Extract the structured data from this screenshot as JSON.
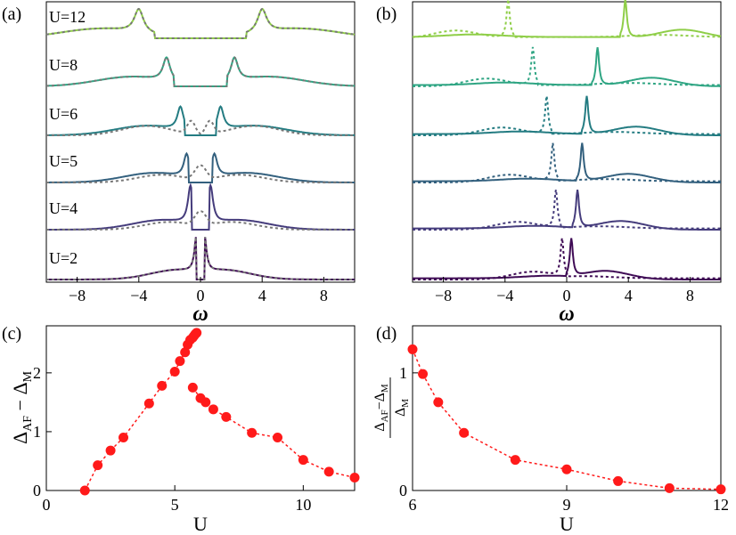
{
  "chart_data": [
    {
      "panel": "(a)",
      "type": "line",
      "xlabel": "ω",
      "x_ticks": [
        "−8",
        "−4",
        "0",
        "4",
        "8"
      ],
      "xlim": [
        -10,
        10
      ],
      "curves": [
        {
          "label": "U=2",
          "U": 2,
          "color": "#3f0b55",
          "gap": 0.3,
          "peak": 0.25,
          "hub": 0.0,
          "dash_center": 0
        },
        {
          "label": "U=4",
          "U": 4,
          "color": "#453c7c",
          "gap": 0.7,
          "peak": 0.65,
          "hub": 2.0,
          "dash_center": 1
        },
        {
          "label": "U=5",
          "U": 5,
          "color": "#33607e",
          "gap": 0.9,
          "peak": 0.9,
          "hub": 2.5,
          "dash_center": 1
        },
        {
          "label": "U=6",
          "U": 6,
          "color": "#247c82",
          "gap": 1.2,
          "peak": 1.3,
          "hub": 3.5,
          "dash_center": 2
        },
        {
          "label": "U=8",
          "U": 8,
          "color": "#2fa583",
          "gap": 2.0,
          "peak": 2.2,
          "hub": 4.5,
          "dash_center": 0
        },
        {
          "label": "U=12",
          "U": 12,
          "color": "#8fce48",
          "gap": 3.5,
          "peak": 4.0,
          "hub": 5.5,
          "dash_center": 0
        }
      ]
    },
    {
      "panel": "(b)",
      "type": "line",
      "xlabel": "ω",
      "x_ticks": [
        "−8",
        "−4",
        "0",
        "4",
        "8"
      ],
      "xlim": [
        -10,
        10
      ],
      "curves": [
        {
          "U": 2,
          "color": "#3f0b55",
          "solid_peak": 0.3,
          "dot_peak": -0.3
        },
        {
          "U": 4,
          "color": "#453c7c",
          "solid_peak": 0.7,
          "dot_peak": -0.7
        },
        {
          "U": 5,
          "color": "#33607e",
          "solid_peak": 1.0,
          "dot_peak": -0.9
        },
        {
          "U": 6,
          "color": "#247c82",
          "solid_peak": 1.3,
          "dot_peak": -1.3
        },
        {
          "U": 8,
          "color": "#2fa583",
          "solid_peak": 2.0,
          "dot_peak": -2.2
        },
        {
          "U": 12,
          "color": "#8fce48",
          "solid_peak": 3.8,
          "dot_peak": -3.8
        }
      ]
    },
    {
      "panel": "(c)",
      "type": "scatter",
      "xlabel": "U",
      "ylabel": "Δ_AF − Δ_M",
      "xlim": [
        0,
        12
      ],
      "ylim": [
        0,
        2.8
      ],
      "x_ticks": [
        "0",
        "5",
        "10"
      ],
      "y_ticks": [
        "0",
        "1",
        "2"
      ],
      "x": [
        1.5,
        2.0,
        2.5,
        3.0,
        4.0,
        4.5,
        5.0,
        5.2,
        5.4,
        5.5,
        5.6,
        5.7,
        5.75,
        5.8,
        5.85,
        5.7,
        6.0,
        6.2,
        6.5,
        7.0,
        8.0,
        9.0,
        10.0,
        11.0,
        12.0
      ],
      "values": [
        0.0,
        0.43,
        0.68,
        0.9,
        1.48,
        1.78,
        2.02,
        2.2,
        2.35,
        2.48,
        2.56,
        2.6,
        2.63,
        2.66,
        2.68,
        1.75,
        1.57,
        1.5,
        1.38,
        1.25,
        0.98,
        0.9,
        0.52,
        0.32,
        0.22
      ],
      "color": "#ff1a1a"
    },
    {
      "panel": "(d)",
      "type": "scatter",
      "xlabel": "U",
      "ylabel": "(Δ_AF − Δ_M) / Δ_M",
      "xlim": [
        6,
        12
      ],
      "ylim": [
        0,
        1.4
      ],
      "x_ticks": [
        "6",
        "9",
        "12"
      ],
      "y_ticks": [
        "0",
        "1"
      ],
      "x": [
        6.0,
        6.2,
        6.5,
        7.0,
        8.0,
        9.0,
        10.0,
        11.0,
        12.0
      ],
      "values": [
        1.2,
        0.99,
        0.75,
        0.49,
        0.26,
        0.18,
        0.08,
        0.02,
        0.01
      ],
      "color": "#ff1a1a"
    }
  ],
  "labels": {
    "panel_a": "(a)",
    "panel_b": "(b)",
    "panel_c": "(c)",
    "panel_d": "(d)",
    "omega_a": "ω",
    "omega_b": "ω",
    "u_c": "U",
    "u_d": "U",
    "ylabel_c_main": "Δ",
    "ylabel_c_sub1": "AF",
    "ylabel_c_mid": " − Δ",
    "ylabel_c_sub2": "M",
    "ylabel_d_num": "Δ",
    "ylabel_d_num_sub1": "AF",
    "ylabel_d_num_mid": "−Δ",
    "ylabel_d_num_sub2": "M",
    "ylabel_d_den": "Δ",
    "ylabel_d_den_sub": "M"
  }
}
